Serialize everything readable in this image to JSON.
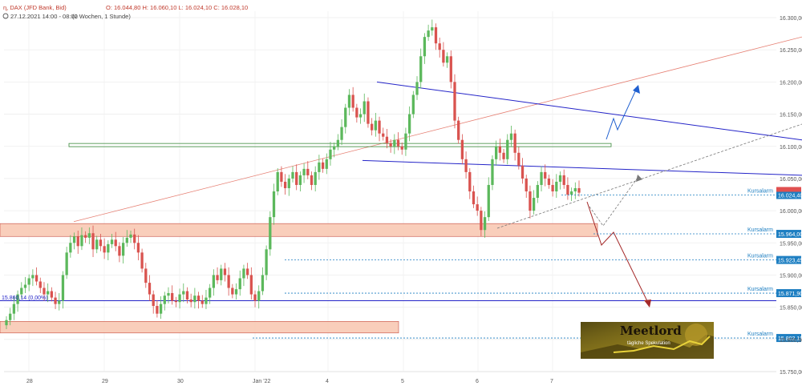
{
  "header": {
    "instrument": "ɳ, DAX (JFD Bank, Bid)",
    "ohlc": "O: 16.044,80   H: 16.060,10   L: 16.024,10   C: 16.028,10",
    "timestamp": "27.12.2021 14:00 - 08:00",
    "period": "(2 Wochen, 1 Stunde)"
  },
  "colors": {
    "up": "#5cb85c",
    "down": "#d9534f",
    "blue": "#2424c8",
    "zone": "#f9c9b4",
    "alarm": "#1e7fc2",
    "darkred": "#a52a2a"
  },
  "chart_data": {
    "type": "candlestick",
    "ylim": [
      15750,
      16310
    ],
    "y_ticks": [
      "15.750,00",
      "15.800,00",
      "15.850,00",
      "15.900,00",
      "15.950,00",
      "16.000,00",
      "16.050,00",
      "16.100,00",
      "16.150,00",
      "16.200,00",
      "16.250,00",
      "16.300,00"
    ],
    "x_ticks": [
      "28",
      "29",
      "30",
      "Jan '22",
      "4",
      "5",
      "6",
      "7"
    ],
    "current_price_label": "16.024,40",
    "kursalarm_label": "Kursalarm",
    "alarms": [
      {
        "label": "16.024,40",
        "value": 16024.4
      },
      {
        "label": "15.964,00",
        "value": 15964.0
      },
      {
        "label": "15.923,45",
        "value": 15923.45
      },
      {
        "label": "15.871,90",
        "value": 15871.9
      },
      {
        "label": "15.802,19",
        "value": 15802.19
      }
    ],
    "horizontal_line_label": "15.860,14 (0,00%)",
    "horizontal_line_value": 15860.14,
    "logo_title": "Meetlord",
    "logo_subtitle": "tägliche Spekulation",
    "closes": [
      15830,
      15840,
      15855,
      15870,
      15880,
      15885,
      15895,
      15900,
      15890,
      15880,
      15870,
      15875,
      15865,
      15855,
      15860,
      15900,
      15935,
      15950,
      15960,
      15945,
      15962,
      15958,
      15965,
      15940,
      15955,
      15945,
      15935,
      15948,
      15955,
      15945,
      15930,
      15950,
      15958,
      15963,
      15950,
      15935,
      15910,
      15888,
      15870,
      15852,
      15840,
      15855,
      15868,
      15872,
      15860,
      15858,
      15870,
      15875,
      15862,
      15858,
      15868,
      15860,
      15855,
      15865,
      15880,
      15900,
      15892,
      15910,
      15900,
      15880,
      15870,
      15878,
      15895,
      15910,
      15900,
      15870,
      15860,
      15875,
      15900,
      15940,
      15990,
      16030,
      16060,
      16045,
      16035,
      16050,
      16060,
      16040,
      16055,
      16065,
      16055,
      16040,
      16060,
      16075,
      16065,
      16080,
      16095,
      16100,
      16110,
      16130,
      16160,
      16180,
      16160,
      16145,
      16150,
      16170,
      16135,
      16125,
      16140,
      16120,
      16115,
      16105,
      16100,
      16110,
      16100,
      16095,
      16120,
      16150,
      16180,
      16200,
      16240,
      16270,
      16280,
      16285,
      16260,
      16250,
      16230,
      16240,
      16200,
      16140,
      16110,
      16080,
      16060,
      16030,
      16010,
      16000,
      15970,
      15990,
      16040,
      16080,
      16100,
      16090,
      16080,
      16110,
      16120,
      16090,
      16070,
      16050,
      16030,
      16000,
      16020,
      16040,
      16060,
      16050,
      16040,
      16030,
      16045,
      16055,
      16040,
      16025,
      16030,
      16035,
      16028
    ],
    "drawings": [
      {
        "name": "red-trendline",
        "from": [
          15983,
          15983
        ],
        "to": [
          16270,
          16270
        ]
      },
      {
        "name": "upper-blue-trendline",
        "from": [
          16200,
          16200
        ],
        "to": [
          16110,
          16110
        ]
      },
      {
        "name": "lower-blue-trendline",
        "from": [
          16078,
          16078
        ],
        "to": [
          16055,
          16055
        ]
      },
      {
        "name": "green-resistance",
        "value": 16102
      },
      {
        "name": "resistance-zone",
        "from": 15960,
        "to": 15980
      },
      {
        "name": "support-zone",
        "from": 15810,
        "to": 15828
      }
    ]
  }
}
